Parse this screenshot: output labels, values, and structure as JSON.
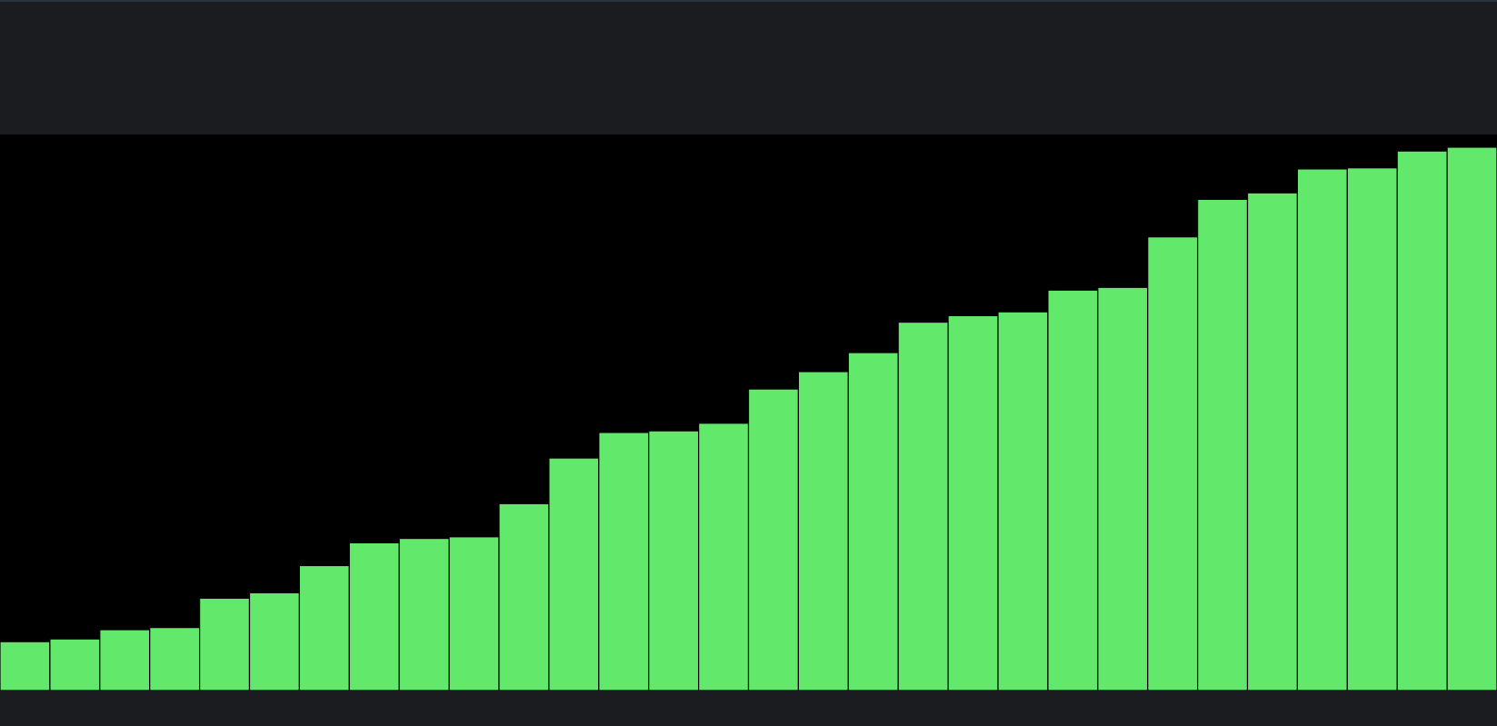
{
  "chart_data": {
    "type": "bar",
    "values": [
      9.0,
      9.5,
      11.2,
      11.6,
      17.0,
      18.0,
      23.0,
      27.2,
      28.0,
      28.3,
      34.4,
      42.8,
      47.5,
      47.8,
      49.2,
      55.5,
      58.7,
      62.2,
      67.8,
      69.0,
      69.7,
      73.7,
      74.2,
      83.5,
      90.4,
      91.6,
      96.0,
      96.2,
      99.3,
      100.0
    ],
    "ylim": [
      0,
      100
    ],
    "grid": false,
    "legend": "none",
    "colors": {
      "bar_fill": "#62e86a",
      "bar_stroke": "#000000",
      "plot_background": "#000000",
      "page_background": "#1b1c1f"
    }
  }
}
